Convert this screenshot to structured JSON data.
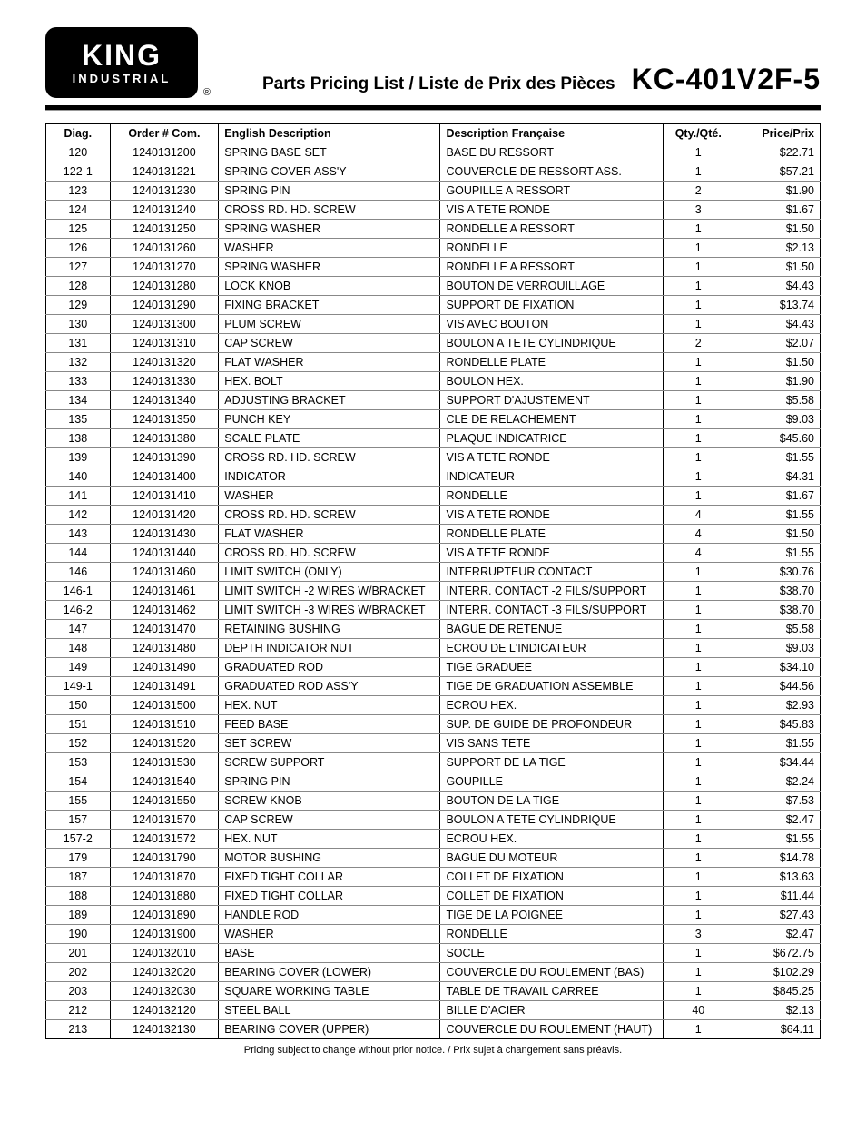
{
  "header": {
    "logo_line1": "KING",
    "logo_line2": "INDUSTRIAL",
    "registered": "®",
    "subtitle": "Parts Pricing List / Liste de Prix des Pièces",
    "model": "KC-401V2F-5"
  },
  "columns": {
    "diag": "Diag.",
    "order": "Order # Com.",
    "en": "English Description",
    "fr": "Description Française",
    "qty": "Qty./Qté.",
    "price": "Price/Prix"
  },
  "rows": [
    {
      "diag": "120",
      "order": "1240131200",
      "en": "SPRING BASE SET",
      "fr": "BASE DU RESSORT",
      "qty": "1",
      "price": "$22.71"
    },
    {
      "diag": "122-1",
      "order": "1240131221",
      "en": "SPRING COVER ASS'Y",
      "fr": "COUVERCLE DE RESSORT ASS.",
      "qty": "1",
      "price": "$57.21"
    },
    {
      "diag": "123",
      "order": "1240131230",
      "en": "SPRING PIN",
      "fr": "GOUPILLE A RESSORT",
      "qty": "2",
      "price": "$1.90"
    },
    {
      "diag": "124",
      "order": "1240131240",
      "en": "CROSS RD. HD. SCREW",
      "fr": "VIS A TETE RONDE",
      "qty": "3",
      "price": "$1.67"
    },
    {
      "diag": "125",
      "order": "1240131250",
      "en": "SPRING WASHER",
      "fr": "RONDELLE A RESSORT",
      "qty": "1",
      "price": "$1.50"
    },
    {
      "diag": "126",
      "order": "1240131260",
      "en": "WASHER",
      "fr": "RONDELLE",
      "qty": "1",
      "price": "$2.13"
    },
    {
      "diag": "127",
      "order": "1240131270",
      "en": "SPRING WASHER",
      "fr": "RONDELLE A RESSORT",
      "qty": "1",
      "price": "$1.50"
    },
    {
      "diag": "128",
      "order": "1240131280",
      "en": "LOCK KNOB",
      "fr": "BOUTON DE VERROUILLAGE",
      "qty": "1",
      "price": "$4.43"
    },
    {
      "diag": "129",
      "order": "1240131290",
      "en": "FIXING BRACKET",
      "fr": "SUPPORT DE FIXATION",
      "qty": "1",
      "price": "$13.74"
    },
    {
      "diag": "130",
      "order": "1240131300",
      "en": "PLUM SCREW",
      "fr": "VIS AVEC BOUTON",
      "qty": "1",
      "price": "$4.43"
    },
    {
      "diag": "131",
      "order": "1240131310",
      "en": "CAP SCREW",
      "fr": "BOULON A TETE CYLINDRIQUE",
      "qty": "2",
      "price": "$2.07"
    },
    {
      "diag": "132",
      "order": "1240131320",
      "en": "FLAT WASHER",
      "fr": "RONDELLE PLATE",
      "qty": "1",
      "price": "$1.50"
    },
    {
      "diag": "133",
      "order": "1240131330",
      "en": "HEX. BOLT",
      "fr": "BOULON HEX.",
      "qty": "1",
      "price": "$1.90"
    },
    {
      "diag": "134",
      "order": "1240131340",
      "en": "ADJUSTING BRACKET",
      "fr": "SUPPORT D'AJUSTEMENT",
      "qty": "1",
      "price": "$5.58"
    },
    {
      "diag": "135",
      "order": "1240131350",
      "en": "PUNCH KEY",
      "fr": "CLE DE RELACHEMENT",
      "qty": "1",
      "price": "$9.03"
    },
    {
      "diag": "138",
      "order": "1240131380",
      "en": "SCALE PLATE",
      "fr": "PLAQUE INDICATRICE",
      "qty": "1",
      "price": "$45.60"
    },
    {
      "diag": "139",
      "order": "1240131390",
      "en": "CROSS RD. HD. SCREW",
      "fr": "VIS A TETE RONDE",
      "qty": "1",
      "price": "$1.55"
    },
    {
      "diag": "140",
      "order": "1240131400",
      "en": "INDICATOR",
      "fr": "INDICATEUR",
      "qty": "1",
      "price": "$4.31"
    },
    {
      "diag": "141",
      "order": "1240131410",
      "en": "WASHER",
      "fr": "RONDELLE",
      "qty": "1",
      "price": "$1.67"
    },
    {
      "diag": "142",
      "order": "1240131420",
      "en": "CROSS RD. HD. SCREW",
      "fr": "VIS A TETE RONDE",
      "qty": "4",
      "price": "$1.55"
    },
    {
      "diag": "143",
      "order": "1240131430",
      "en": "FLAT WASHER",
      "fr": "RONDELLE PLATE",
      "qty": "4",
      "price": "$1.50"
    },
    {
      "diag": "144",
      "order": "1240131440",
      "en": "CROSS RD. HD. SCREW",
      "fr": "VIS A TETE RONDE",
      "qty": "4",
      "price": "$1.55"
    },
    {
      "diag": "146",
      "order": "1240131460",
      "en": "LIMIT SWITCH (ONLY)",
      "fr": "INTERRUPTEUR CONTACT",
      "qty": "1",
      "price": "$30.76"
    },
    {
      "diag": "146-1",
      "order": "1240131461",
      "en": "LIMIT SWITCH -2 WIRES W/BRACKET",
      "fr": "INTERR. CONTACT -2 FILS/SUPPORT",
      "qty": "1",
      "price": "$38.70"
    },
    {
      "diag": "146-2",
      "order": "1240131462",
      "en": "LIMIT SWITCH -3 WIRES W/BRACKET",
      "fr": "INTERR. CONTACT -3 FILS/SUPPORT",
      "qty": "1",
      "price": "$38.70"
    },
    {
      "diag": "147",
      "order": "1240131470",
      "en": "RETAINING BUSHING",
      "fr": "BAGUE DE RETENUE",
      "qty": "1",
      "price": "$5.58"
    },
    {
      "diag": "148",
      "order": "1240131480",
      "en": "DEPTH INDICATOR NUT",
      "fr": "ECROU DE L'INDICATEUR",
      "qty": "1",
      "price": "$9.03"
    },
    {
      "diag": "149",
      "order": "1240131490",
      "en": "GRADUATED ROD",
      "fr": "TIGE GRADUEE",
      "qty": "1",
      "price": "$34.10"
    },
    {
      "diag": "149-1",
      "order": "1240131491",
      "en": "GRADUATED ROD ASS'Y",
      "fr": "TIGE DE GRADUATION ASSEMBLE",
      "qty": "1",
      "price": "$44.56"
    },
    {
      "diag": "150",
      "order": "1240131500",
      "en": "HEX. NUT",
      "fr": "ECROU HEX.",
      "qty": "1",
      "price": "$2.93"
    },
    {
      "diag": "151",
      "order": "1240131510",
      "en": "FEED BASE",
      "fr": "SUP. DE GUIDE DE PROFONDEUR",
      "qty": "1",
      "price": "$45.83"
    },
    {
      "diag": "152",
      "order": "1240131520",
      "en": "SET SCREW",
      "fr": "VIS SANS TETE",
      "qty": "1",
      "price": "$1.55"
    },
    {
      "diag": "153",
      "order": "1240131530",
      "en": "SCREW SUPPORT",
      "fr": "SUPPORT DE LA TIGE",
      "qty": "1",
      "price": "$34.44"
    },
    {
      "diag": "154",
      "order": "1240131540",
      "en": "SPRING PIN",
      "fr": "GOUPILLE",
      "qty": "1",
      "price": "$2.24"
    },
    {
      "diag": "155",
      "order": "1240131550",
      "en": "SCREW KNOB",
      "fr": "BOUTON DE LA TIGE",
      "qty": "1",
      "price": "$7.53"
    },
    {
      "diag": "157",
      "order": "1240131570",
      "en": "CAP SCREW",
      "fr": "BOULON A TETE CYLINDRIQUE",
      "qty": "1",
      "price": "$2.47"
    },
    {
      "diag": "157-2",
      "order": "1240131572",
      "en": "HEX. NUT",
      "fr": "ECROU HEX.",
      "qty": "1",
      "price": "$1.55"
    },
    {
      "diag": "179",
      "order": "1240131790",
      "en": "MOTOR BUSHING",
      "fr": "BAGUE DU MOTEUR",
      "qty": "1",
      "price": "$14.78"
    },
    {
      "diag": "187",
      "order": "1240131870",
      "en": "FIXED TIGHT COLLAR",
      "fr": "COLLET DE FIXATION",
      "qty": "1",
      "price": "$13.63"
    },
    {
      "diag": "188",
      "order": "1240131880",
      "en": "FIXED TIGHT COLLAR",
      "fr": "COLLET DE FIXATION",
      "qty": "1",
      "price": "$11.44"
    },
    {
      "diag": "189",
      "order": "1240131890",
      "en": "HANDLE ROD",
      "fr": "TIGE DE LA POIGNEE",
      "qty": "1",
      "price": "$27.43"
    },
    {
      "diag": "190",
      "order": "1240131900",
      "en": "WASHER",
      "fr": "RONDELLE",
      "qty": "3",
      "price": "$2.47"
    },
    {
      "diag": "201",
      "order": "1240132010",
      "en": "BASE",
      "fr": "SOCLE",
      "qty": "1",
      "price": "$672.75"
    },
    {
      "diag": "202",
      "order": "1240132020",
      "en": "BEARING COVER (LOWER)",
      "fr": "COUVERCLE DU ROULEMENT (BAS)",
      "qty": "1",
      "price": "$102.29"
    },
    {
      "diag": "203",
      "order": "1240132030",
      "en": "SQUARE WORKING TABLE",
      "fr": "TABLE DE TRAVAIL CARREE",
      "qty": "1",
      "price": "$845.25"
    },
    {
      "diag": "212",
      "order": "1240132120",
      "en": "STEEL BALL",
      "fr": "BILLE D'ACIER",
      "qty": "40",
      "price": "$2.13"
    },
    {
      "diag": "213",
      "order": "1240132130",
      "en": "BEARING COVER (UPPER)",
      "fr": "COUVERCLE DU ROULEMENT (HAUT)",
      "qty": "1",
      "price": "$64.11"
    }
  ],
  "footnote": "Pricing subject to change without prior notice. / Prix sujet à changement sans préavis."
}
